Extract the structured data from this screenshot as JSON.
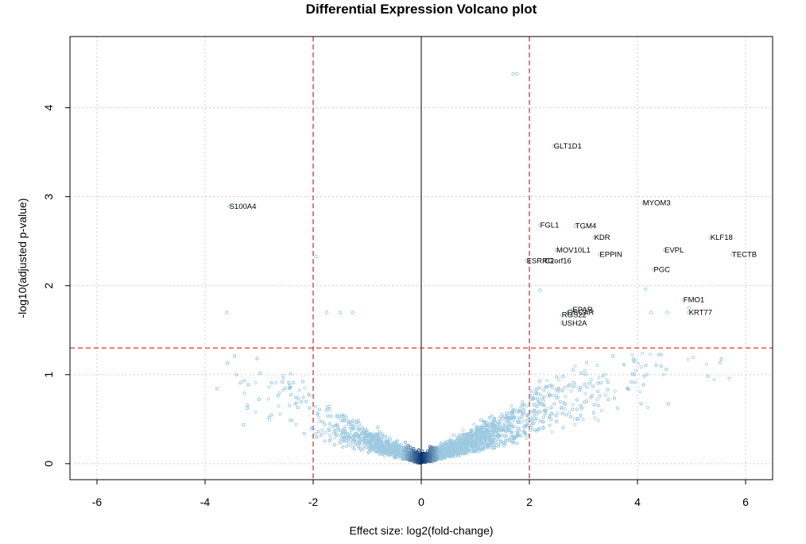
{
  "chart_data": {
    "type": "scatter",
    "title": "Differential Expression Volcano plot",
    "xlabel": "Effect size: log2(fold-change)",
    "ylabel": "-log10(adjusted p-value)",
    "xlim": [
      -6.5,
      6.5
    ],
    "ylim": [
      -0.18,
      4.8
    ],
    "xticks": [
      -6,
      -4,
      -2,
      0,
      2,
      4,
      6
    ],
    "yticks": [
      0,
      1,
      2,
      3,
      4
    ],
    "grid": true,
    "thresholds": {
      "log2fc": [
        -2,
        2
      ],
      "neg_log10_padj": 1.3
    },
    "colors": {
      "point_light": "#9ecae1",
      "point_dark": "#08306b",
      "threshold_line": "#e41a1c",
      "zero_line": "#000000",
      "grid": "#cccccc"
    },
    "labeled_genes": [
      {
        "label": "GLT1D1",
        "x": 2.45,
        "y": 3.57
      },
      {
        "label": "S100A4",
        "x": -3.55,
        "y": 2.89
      },
      {
        "label": "MYOM3",
        "x": 4.1,
        "y": 2.93
      },
      {
        "label": "FGL1",
        "x": 2.2,
        "y": 2.68
      },
      {
        "label": "TGM4",
        "x": 2.85,
        "y": 2.67
      },
      {
        "label": "KDR",
        "x": 3.2,
        "y": 2.54
      },
      {
        "label": "KLF18",
        "x": 5.35,
        "y": 2.54
      },
      {
        "label": "MOV10L1",
        "x": 2.5,
        "y": 2.4
      },
      {
        "label": "EVPL",
        "x": 4.5,
        "y": 2.4
      },
      {
        "label": "EPPIN",
        "x": 3.3,
        "y": 2.35
      },
      {
        "label": "TECTB",
        "x": 5.75,
        "y": 2.35
      },
      {
        "label": "ESRRG",
        "x": 1.95,
        "y": 2.28
      },
      {
        "label": "C2orf16",
        "x": 2.28,
        "y": 2.28
      },
      {
        "label": "PGC",
        "x": 4.3,
        "y": 2.18
      },
      {
        "label": "FMO1",
        "x": 4.85,
        "y": 1.84
      },
      {
        "label": "KRT77",
        "x": 4.95,
        "y": 1.7
      },
      {
        "label": "EPAR",
        "x": 2.8,
        "y": 1.73
      },
      {
        "label": "OSCAR",
        "x": 2.7,
        "y": 1.7
      },
      {
        "label": "RGS22",
        "x": 2.6,
        "y": 1.67
      },
      {
        "label": "USH2A",
        "x": 2.6,
        "y": 1.58
      }
    ],
    "highlight_points": [
      {
        "x": 1.7,
        "y": 4.38
      },
      {
        "x": 1.77,
        "y": 4.38
      },
      {
        "x": -1.95,
        "y": 2.33
      },
      {
        "x": -3.6,
        "y": 1.7
      },
      {
        "x": -1.75,
        "y": 1.7
      },
      {
        "x": -1.5,
        "y": 1.7
      },
      {
        "x": -1.27,
        "y": 1.7
      },
      {
        "x": 2.2,
        "y": 1.95
      },
      {
        "x": 4.15,
        "y": 1.96
      },
      {
        "x": 4.25,
        "y": 1.7
      },
      {
        "x": 4.55,
        "y": 1.7
      },
      {
        "x": 4.95,
        "y": 1.75
      }
    ],
    "background_distribution": {
      "n_points": 6500,
      "shape": "volcano: -log10(padj) rises with |log2FC|; most points below 1.3",
      "x_range": [
        -3.8,
        5.8
      ]
    }
  }
}
